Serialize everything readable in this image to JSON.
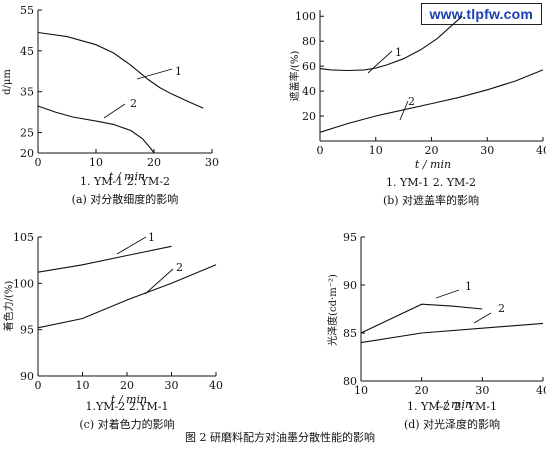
{
  "watermark": "www.tlpfw.com",
  "figure_caption": "图 2   研磨料配方对油墨分散性能的影响",
  "chart_data": [
    {
      "type": "line",
      "ylabel": "d/μm",
      "xlabel": "t / min",
      "legend": "1. YM-1   2. YM-2",
      "caption": "(a)  对分散细度的影响",
      "xlim": [
        0,
        30
      ],
      "ylim": [
        20,
        55
      ],
      "xticks": [
        0,
        10,
        20,
        30
      ],
      "yticks": [
        20,
        25,
        35,
        45,
        55
      ],
      "series": [
        {
          "name": "1",
          "points": [
            [
              0,
              49.5
            ],
            [
              5,
              48.5
            ],
            [
              10,
              46.5
            ],
            [
              13,
              44.5
            ],
            [
              16,
              41.5
            ],
            [
              19,
              38
            ],
            [
              21,
              36
            ],
            [
              23,
              34.5
            ],
            [
              26,
              32.5
            ],
            [
              28.5,
              31
            ]
          ]
        },
        {
          "name": "2",
          "points": [
            [
              0,
              31.5
            ],
            [
              3,
              30
            ],
            [
              6,
              28.8
            ],
            [
              10,
              27.8
            ],
            [
              13,
              27
            ],
            [
              16,
              25.5
            ],
            [
              18,
              23.5
            ],
            [
              19.5,
              21
            ],
            [
              20,
              20
            ]
          ]
        }
      ],
      "labels": [
        "1",
        "2"
      ]
    },
    {
      "type": "line",
      "ylabel": "遮盖率/(%)",
      "xlabel": "t / min",
      "legend": "1. YM-1   2. YM-2",
      "caption": "(b)  对遮盖率的影响",
      "xlim": [
        0,
        40
      ],
      "ylim": [
        0,
        105
      ],
      "xticks": [
        0,
        10,
        20,
        30,
        40
      ],
      "yticks": [
        20,
        40,
        60,
        80,
        100
      ],
      "series": [
        {
          "name": "1",
          "points": [
            [
              0,
              58
            ],
            [
              2,
              57
            ],
            [
              5,
              56.5
            ],
            [
              8,
              57
            ],
            [
              10,
              58.5
            ],
            [
              12,
              61
            ],
            [
              15,
              66
            ],
            [
              18,
              73
            ],
            [
              21,
              82
            ],
            [
              24,
              94
            ],
            [
              25.5,
              100
            ]
          ]
        },
        {
          "name": "2",
          "points": [
            [
              0,
              7
            ],
            [
              5,
              14
            ],
            [
              10,
              20
            ],
            [
              15,
              25
            ],
            [
              20,
              30
            ],
            [
              25,
              35
            ],
            [
              30,
              41
            ],
            [
              35,
              48
            ],
            [
              40,
              57
            ]
          ]
        }
      ],
      "labels": [
        "1",
        "2"
      ]
    },
    {
      "type": "line",
      "ylabel": "着色力/(%)",
      "xlabel": "t / min",
      "legend": "1.YM-2   2.YM-1",
      "caption": "(c)  对着色力的影响",
      "xlim": [
        0,
        40
      ],
      "ylim": [
        90,
        105
      ],
      "xticks": [
        0,
        10,
        20,
        30,
        40
      ],
      "yticks": [
        90,
        95,
        100,
        105
      ],
      "series": [
        {
          "name": "1",
          "points": [
            [
              0,
              101.2
            ],
            [
              10,
              102
            ],
            [
              20,
              103
            ],
            [
              30,
              104
            ]
          ]
        },
        {
          "name": "2",
          "points": [
            [
              0,
              95.2
            ],
            [
              10,
              96.2
            ],
            [
              20,
              98.2
            ],
            [
              30,
              100
            ],
            [
              40,
              102
            ]
          ]
        }
      ],
      "labels": [
        "1",
        "2"
      ]
    },
    {
      "type": "line",
      "ylabel": "光泽度(cd·m⁻²)",
      "xlabel": "t / min",
      "legend": "1. YM-2   2. YM-1",
      "caption": "(d)  对光泽度的影响",
      "xlim": [
        10,
        40
      ],
      "ylim": [
        80,
        95
      ],
      "xticks": [
        10,
        20,
        30,
        40
      ],
      "yticks": [
        80,
        85,
        90,
        95
      ],
      "series": [
        {
          "name": "1",
          "points": [
            [
              10,
              85
            ],
            [
              15,
              86.5
            ],
            [
              20,
              88
            ],
            [
              25,
              87.8
            ],
            [
              30,
              87.5
            ]
          ]
        },
        {
          "name": "2",
          "points": [
            [
              10,
              84
            ],
            [
              20,
              85
            ],
            [
              30,
              85.5
            ],
            [
              40,
              86
            ]
          ]
        }
      ],
      "labels": [
        "1",
        "2"
      ]
    }
  ]
}
